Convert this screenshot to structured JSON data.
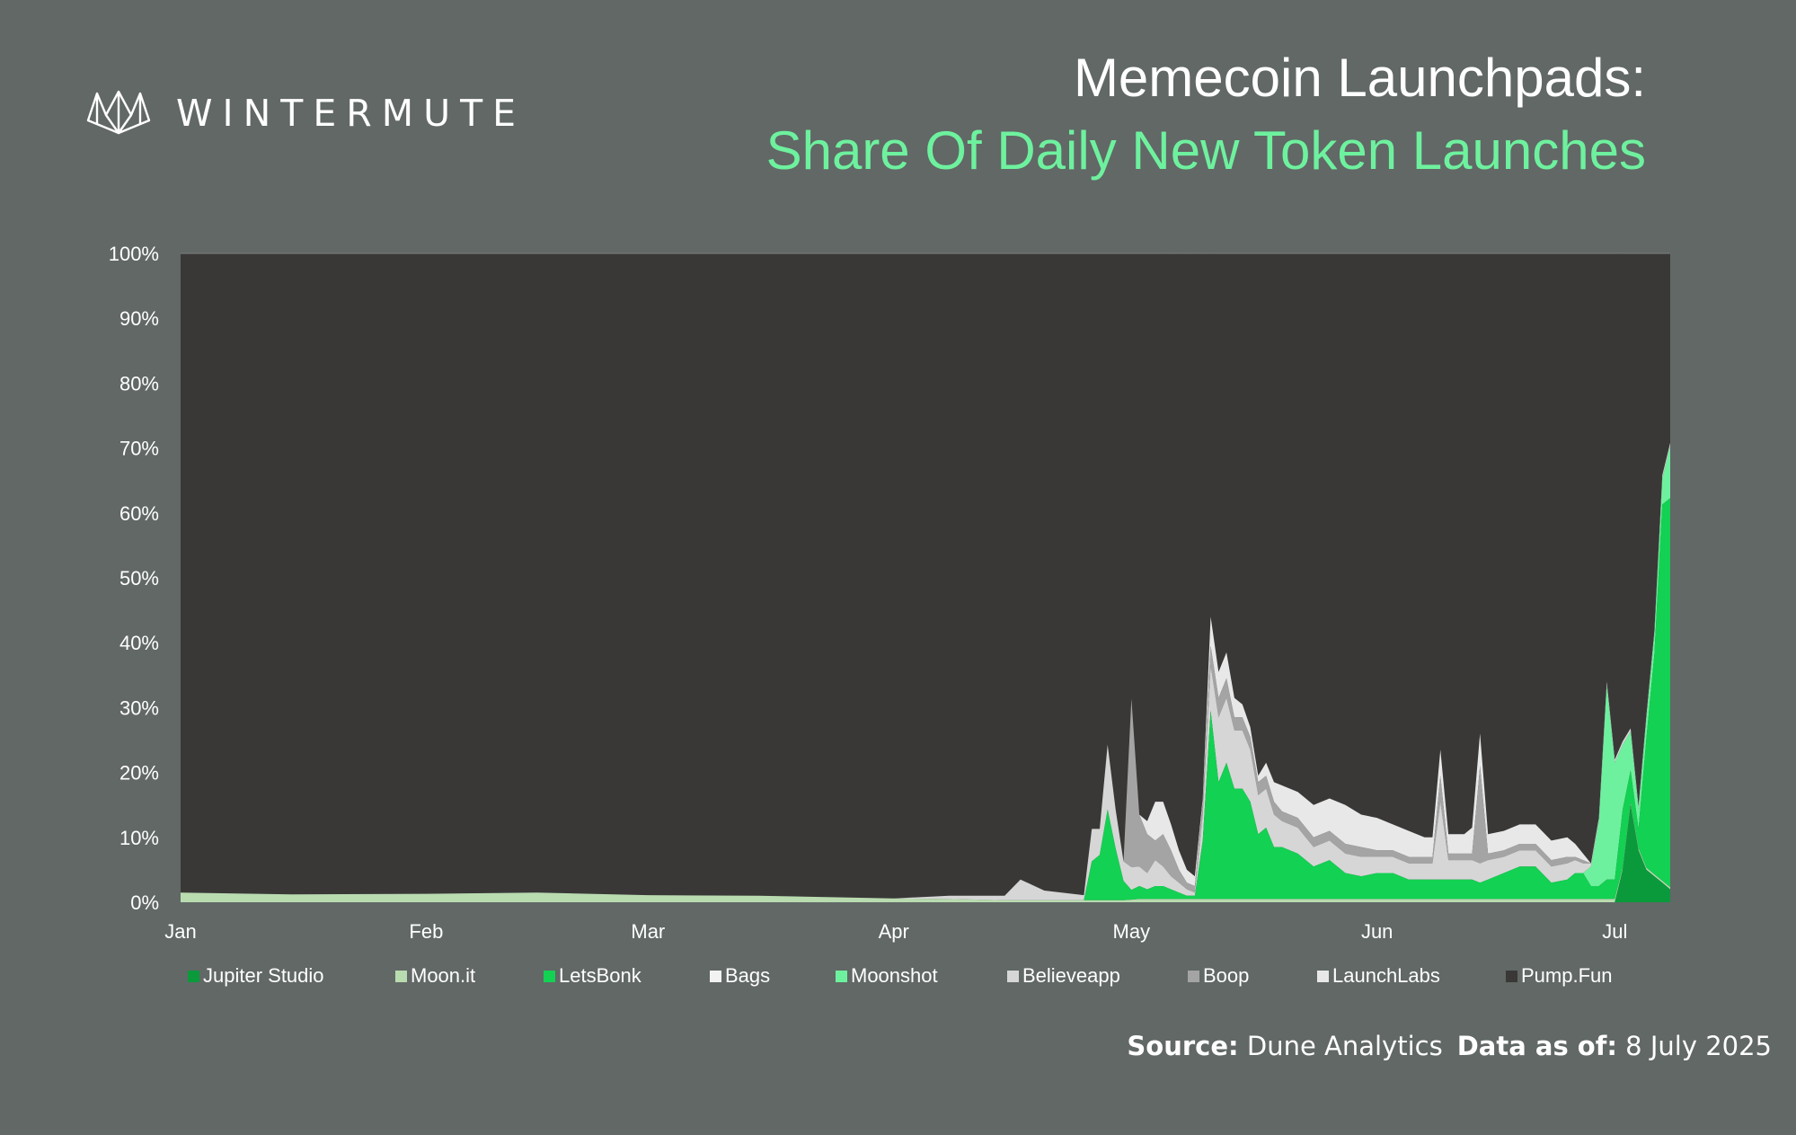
{
  "brand": {
    "name": "WINTERMUTE",
    "logo_icon": "wintermute-logo-icon"
  },
  "header": {
    "title": "Memecoin Launchpads:",
    "subtitle": "Share Of Daily New Token Launches"
  },
  "footer": {
    "source_label": "Source:",
    "source_value": "Dune Analytics",
    "asof_label": "Data as of:",
    "asof_value": "8 July 2025"
  },
  "colors": {
    "background": "#616866",
    "plot_background": "#393837",
    "title": "#ffffff",
    "subtitle": "#6ef19e"
  },
  "chart_data": {
    "type": "area",
    "stacked": true,
    "normalized_percent": true,
    "title": "",
    "xlabel": "",
    "ylabel": "",
    "x": [
      "Jan 1",
      "Jan 15",
      "Feb 1",
      "Feb 15",
      "Mar 1",
      "Mar 15",
      "Apr 1",
      "Apr 8",
      "Apr 15",
      "Apr 17",
      "Apr 20",
      "Apr 25",
      "Apr 26",
      "Apr 27",
      "Apr 28",
      "Apr 29",
      "Apr 30",
      "May 1",
      "May 2",
      "May 3",
      "May 4",
      "May 5",
      "May 6",
      "May 7",
      "May 8",
      "May 9",
      "May 10",
      "May 11",
      "May 12",
      "May 13",
      "May 14",
      "May 15",
      "May 16",
      "May 17",
      "May 18",
      "May 19",
      "May 20",
      "May 22",
      "May 24",
      "May 26",
      "May 28",
      "May 30",
      "Jun 1",
      "Jun 3",
      "Jun 5",
      "Jun 7",
      "Jun 8",
      "Jun 9",
      "Jun 10",
      "Jun 12",
      "Jun 13",
      "Jun 14",
      "Jun 15",
      "Jun 17",
      "Jun 19",
      "Jun 21",
      "Jun 23",
      "Jun 25",
      "Jun 26",
      "Jun 27",
      "Jun 28",
      "Jun 29",
      "Jun 30",
      "Jul 1",
      "Jul 2",
      "Jul 3",
      "Jul 4",
      "Jul 5",
      "Jul 6",
      "Jul 7",
      "Jul 8"
    ],
    "x_ticks": [
      "Jan",
      "Feb",
      "Mar",
      "Apr",
      "May",
      "Jun",
      "Jul"
    ],
    "ylim": [
      0,
      100
    ],
    "y_ticks": [
      "0%",
      "10%",
      "20%",
      "30%",
      "40%",
      "50%",
      "60%",
      "70%",
      "80%",
      "90%",
      "100%"
    ],
    "grid": false,
    "legend_position": "bottom",
    "series": [
      {
        "name": "Jupiter Studio",
        "color": "#0a9a3c",
        "values": [
          0,
          0,
          0,
          0,
          0,
          0,
          0,
          0,
          0,
          0,
          0,
          0,
          0,
          0,
          0,
          0,
          0,
          0,
          0,
          0,
          0,
          0,
          0,
          0,
          0,
          0,
          0,
          0,
          0,
          0,
          0,
          0,
          0,
          0,
          0,
          0,
          0,
          0,
          0,
          0,
          0,
          0,
          0,
          0,
          0,
          0,
          0,
          0,
          0,
          0,
          0,
          0,
          0,
          0,
          0,
          0,
          0,
          0,
          0,
          0,
          0,
          0,
          0,
          0,
          5,
          15,
          8,
          5,
          4,
          3,
          2
        ]
      },
      {
        "name": "Moon.it",
        "color": "#b9dbb0",
        "values": [
          1.5,
          1.2,
          1.3,
          1.5,
          1.1,
          1.0,
          0.6,
          0.5,
          0.3,
          0.3,
          0.3,
          0.3,
          0.3,
          0.3,
          0.3,
          0.3,
          0.3,
          0.4,
          0.5,
          0.5,
          0.5,
          0.5,
          0.5,
          0.5,
          0.5,
          0.5,
          0.5,
          0.5,
          0.5,
          0.5,
          0.5,
          0.5,
          0.5,
          0.5,
          0.5,
          0.5,
          0.5,
          0.5,
          0.5,
          0.5,
          0.5,
          0.5,
          0.5,
          0.5,
          0.5,
          0.5,
          0.5,
          0.5,
          0.5,
          0.5,
          0.5,
          0.5,
          0.5,
          0.5,
          0.5,
          0.5,
          0.5,
          0.5,
          0.5,
          0.5,
          0.5,
          0.5,
          0.5,
          0.5,
          0.3,
          0.3,
          0.3,
          0.3,
          0.3,
          0.3,
          0.3
        ]
      },
      {
        "name": "LetsBonk",
        "color": "#13d152",
        "values": [
          0,
          0,
          0,
          0,
          0,
          0,
          0,
          0,
          0,
          0,
          0,
          0,
          6,
          7,
          14,
          8,
          3,
          1.5,
          2,
          1.5,
          2,
          2,
          1.5,
          1,
          0.5,
          0.5,
          9,
          29,
          18,
          21,
          17,
          17,
          15,
          10,
          11,
          8,
          8,
          7,
          5,
          6,
          4,
          3.5,
          4,
          4,
          3,
          3,
          3,
          3,
          3,
          3,
          3,
          2.5,
          3,
          4,
          5,
          5,
          2.5,
          3,
          4,
          4,
          2,
          2,
          3,
          3,
          9,
          5,
          3,
          20,
          34,
          58,
          60
        ]
      },
      {
        "name": "Bags",
        "color": "#f2f2f2",
        "values": [
          0,
          0,
          0,
          0,
          0,
          0,
          0,
          0,
          0,
          0,
          0,
          0,
          0,
          0,
          0,
          0,
          0,
          0,
          0,
          0,
          0,
          0,
          0,
          0,
          0,
          0,
          0,
          0,
          0,
          0,
          0,
          0,
          0,
          0,
          0,
          0,
          0,
          0,
          0,
          0,
          0,
          0,
          0,
          0,
          0,
          0,
          0,
          0,
          0,
          0,
          0,
          0,
          0,
          0,
          0,
          0,
          0,
          0,
          0,
          0,
          0,
          0,
          0,
          0,
          0,
          0,
          0,
          0,
          0,
          0,
          0
        ]
      },
      {
        "name": "Moonshot",
        "color": "#6ef19e",
        "values": [
          0,
          0,
          0,
          0,
          0,
          0,
          0,
          0,
          0,
          0,
          0,
          0,
          0,
          0,
          0,
          0,
          0,
          0,
          0,
          0,
          0,
          0,
          0,
          0,
          0,
          0,
          0,
          0,
          0,
          0,
          0,
          0,
          0,
          0,
          0,
          0,
          0,
          0,
          0,
          0,
          0,
          0,
          0,
          0,
          0,
          0,
          0,
          0,
          0,
          0,
          0,
          0,
          0,
          0,
          0,
          0,
          0,
          0,
          0,
          0,
          3,
          10,
          30,
          18,
          10,
          6,
          3,
          3,
          3,
          4,
          8
        ]
      },
      {
        "name": "Believeapp",
        "color": "#d6d6d6",
        "values": [
          0,
          0,
          0,
          0,
          0,
          0,
          0,
          0.5,
          0.7,
          3.2,
          1.5,
          0.8,
          5,
          4,
          10,
          6,
          3,
          3.5,
          3,
          2.5,
          4,
          3,
          2,
          1.5,
          1,
          0.5,
          4,
          7,
          10,
          10,
          9,
          9,
          8,
          6,
          6,
          5,
          4,
          4,
          3,
          3,
          3,
          3,
          2.5,
          2.5,
          2.5,
          2.5,
          2.5,
          12,
          3,
          3,
          3,
          3,
          3,
          2.5,
          2.5,
          2.5,
          2.5,
          2.5,
          2,
          1.5,
          0.5,
          0.5,
          0.5,
          0.5,
          0.5,
          0.5,
          0.5,
          0.5,
          0.5,
          0.5,
          0.5
        ]
      },
      {
        "name": "Boop",
        "color": "#a4a4a4",
        "values": [
          0,
          0,
          0,
          0,
          0,
          0,
          0,
          0,
          0,
          0,
          0,
          0,
          0,
          0,
          0,
          0,
          0,
          26,
          8,
          6,
          3,
          5,
          4,
          2,
          1,
          1,
          2,
          3,
          3,
          3,
          2,
          2,
          2,
          2,
          2,
          2,
          1.5,
          1.5,
          1.5,
          1.5,
          1.5,
          1.5,
          1,
          1,
          1,
          1,
          1,
          4,
          1,
          1,
          1,
          15,
          1,
          1,
          1,
          1,
          1,
          1,
          0.5,
          0.5,
          0,
          0,
          0,
          0,
          0,
          0,
          0,
          0,
          0,
          0,
          0
        ]
      },
      {
        "name": "LaunchLabs",
        "color": "#e8e8e8",
        "values": [
          0,
          0,
          0,
          0,
          0,
          0,
          0,
          0,
          0,
          0,
          0,
          0,
          0,
          0,
          0,
          0,
          0,
          0,
          0,
          2,
          6,
          5,
          4,
          3,
          2,
          1.5,
          0.5,
          4.5,
          4,
          4,
          3,
          2,
          1.5,
          1,
          2,
          3,
          4,
          4,
          5,
          5,
          6,
          5,
          5,
          4,
          4,
          3,
          3,
          4,
          3,
          3,
          4,
          5,
          3,
          3,
          3,
          3,
          3,
          3,
          2,
          1,
          0,
          0,
          0,
          0,
          0,
          0,
          0,
          0,
          0,
          0,
          0
        ]
      },
      {
        "name": "Pump.Fun",
        "color": "#393837",
        "values": [
          98.5,
          98.8,
          98.7,
          98.5,
          98.9,
          99.0,
          99.4,
          99.0,
          99.0,
          96.5,
          98.2,
          98.9,
          88.7,
          88.7,
          75.7,
          85.7,
          93.7,
          68.6,
          86.5,
          87.5,
          84.5,
          84.5,
          87.5,
          92.0,
          95.0,
          96.0,
          83.5,
          56.0,
          64.5,
          61.5,
          68.5,
          69.5,
          73.0,
          80.5,
          78.5,
          81.5,
          82.0,
          83.0,
          85.0,
          84.0,
          85.0,
          87.0,
          87.0,
          88.0,
          89.0,
          90.0,
          90.0,
          76.5,
          89.5,
          89.5,
          88.5,
          74.0,
          89.5,
          89.0,
          88.0,
          88.0,
          90.5,
          90.0,
          91.0,
          92.5,
          94.0,
          87.0,
          66.0,
          78.0,
          75.0,
          73.0,
          85.0,
          71.0,
          58.0,
          34.0,
          29.0
        ]
      }
    ]
  }
}
